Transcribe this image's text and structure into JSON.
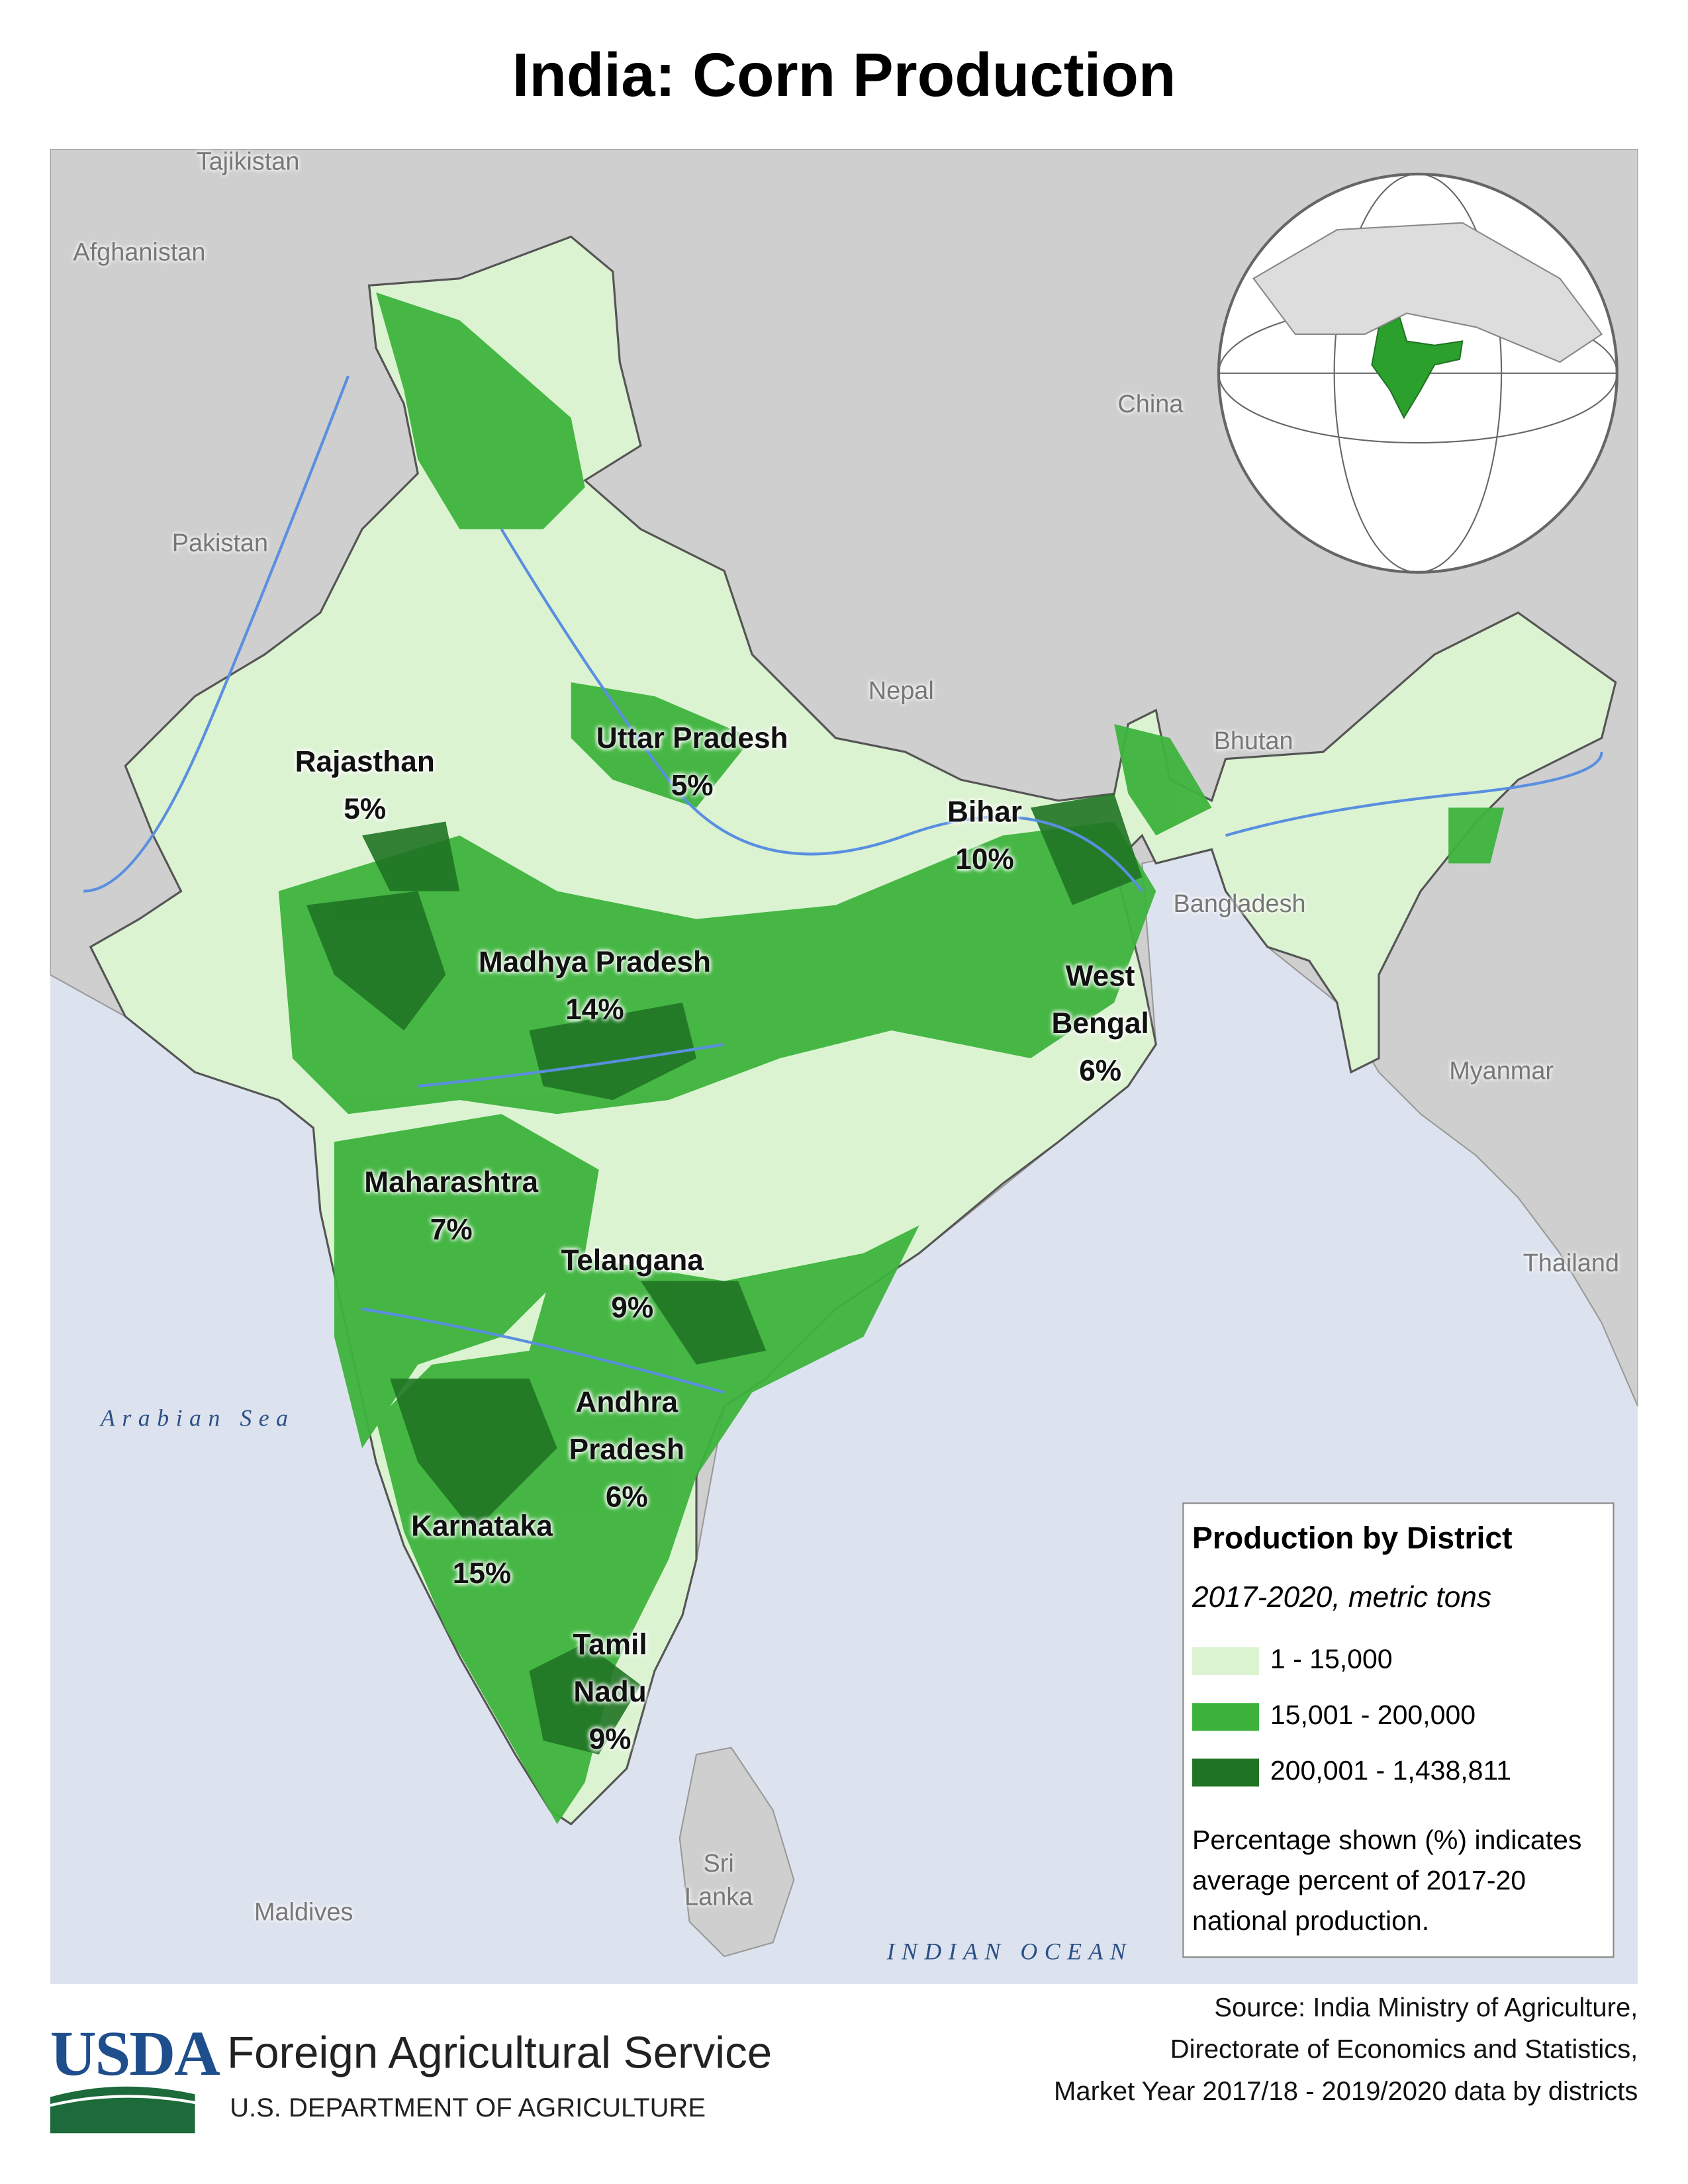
{
  "title": "India: Corn Production",
  "countries": [
    "Tajikistan",
    "Afghanistan",
    "Pakistan",
    "China",
    "Nepal",
    "Bhutan",
    "Bangladesh",
    "Myanmar",
    "Thailand",
    "Sri Lanka",
    "Maldives"
  ],
  "water": [
    "Arabian Sea",
    "INDIAN OCEAN"
  ],
  "states": [
    {
      "name": "Rajasthan",
      "percent": "5%"
    },
    {
      "name": "Uttar Pradesh",
      "percent": "5%"
    },
    {
      "name": "Bihar",
      "percent": "10%"
    },
    {
      "name": "Madhya Pradesh",
      "percent": "14%"
    },
    {
      "name": "West Bengal",
      "percent": "6%"
    },
    {
      "name": "Maharashtra",
      "percent": "7%"
    },
    {
      "name": "Telangana",
      "percent": "9%"
    },
    {
      "name": "Andhra Pradesh",
      "percent": "6%"
    },
    {
      "name": "Karnataka",
      "percent": "15%"
    },
    {
      "name": "Tamil Nadu",
      "percent": "9%"
    }
  ],
  "legend": {
    "title": "Production by District",
    "subtitle": "2017-2020, metric tons",
    "classes": [
      {
        "label": "1 - 15,000",
        "color": "#dcf3d2"
      },
      {
        "label": "15,001 - 200,000",
        "color": "#3db33d"
      },
      {
        "label": "200,001 - 1,438,811",
        "color": "#1f7423"
      }
    ],
    "note": "Percentage shown (%) indicates average percent of 2017-20 national production."
  },
  "footer": {
    "logo": "USDA",
    "agency": "Foreign Agricultural Service",
    "department": "U.S. DEPARTMENT OF AGRICULTURE",
    "source": [
      "Source: India Ministry of Agriculture,",
      "Directorate of Economics and Statistics,",
      "Market Year 2017/18 - 2019/2020 data by districts"
    ]
  }
}
